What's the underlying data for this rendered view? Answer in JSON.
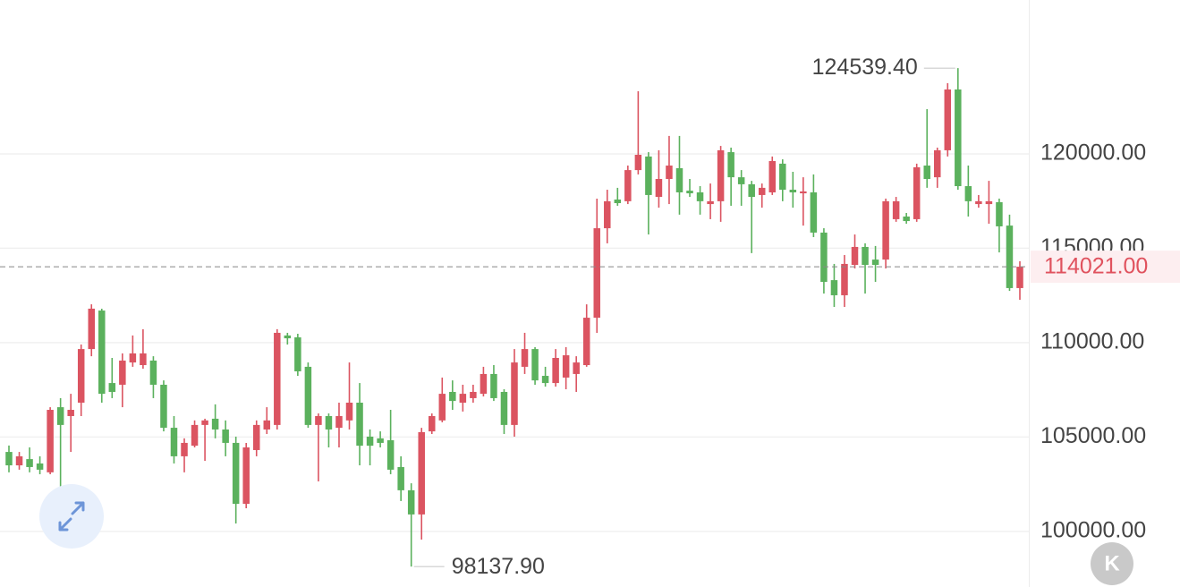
{
  "chart_data": {
    "type": "candlestick",
    "open": [
      104210,
      103500,
      103830,
      103600,
      103130,
      106580,
      106110,
      106820,
      109660,
      111700,
      107860,
      107770,
      108950,
      108810,
      109050,
      107770,
      105490,
      103980,
      104540,
      105640,
      105970,
      105400,
      104690,
      101460,
      104310,
      105400,
      105640,
      110380,
      110280,
      108720,
      105640,
      106110,
      105490,
      105880,
      106820,
      105020,
      104930,
      104830,
      103410,
      102180,
      100900,
      105300,
      105880,
      107390,
      106820,
      107060,
      107290,
      108340,
      107390,
      105640,
      108720,
      109660,
      108240,
      107860,
      108150,
      108340,
      108810,
      111320,
      116060,
      117580,
      117490,
      119140,
      119860,
      117720,
      118670,
      119240,
      118050,
      117960,
      117340,
      117490,
      120090,
      118760,
      118390,
      117820,
      117960,
      119480,
      118100,
      117910,
      117960,
      115830,
      113310,
      112510,
      114120,
      115070,
      114400,
      114400,
      116540,
      116680,
      116540,
      119380,
      118760,
      120190,
      123410,
      118290,
      117340,
      117340,
      117440,
      116200,
      112890
    ],
    "high": [
      104550,
      104210,
      104450,
      103980,
      106580,
      107060,
      107290,
      109900,
      112030,
      111800,
      109190,
      109430,
      110380,
      110710,
      109280,
      108000,
      106110,
      104930,
      105880,
      105970,
      106730,
      105880,
      105020,
      104690,
      105880,
      106580,
      110710,
      110520,
      110470,
      108950,
      106250,
      106250,
      106820,
      108950,
      107860,
      105400,
      105300,
      106440,
      103980,
      102550,
      105490,
      106250,
      108150,
      108000,
      107770,
      107770,
      108720,
      108810,
      107530,
      109660,
      110520,
      109760,
      108720,
      109660,
      109760,
      109280,
      112030,
      117630,
      118100,
      118200,
      119380,
      123320,
      120090,
      120190,
      120950,
      120950,
      118670,
      118290,
      118430,
      120420,
      120330,
      119140,
      118570,
      118430,
      119860,
      119710,
      119050,
      118760,
      118910,
      116060,
      114170,
      114640,
      115730,
      115260,
      115120,
      117630,
      117720,
      116870,
      119480,
      122370,
      120330,
      123740,
      124539.4,
      119380,
      117820,
      118570,
      117630,
      116780,
      114310
    ],
    "low": [
      103130,
      103270,
      103130,
      103030,
      103030,
      102180,
      104210,
      106110,
      109280,
      106820,
      107060,
      106580,
      108720,
      108620,
      107060,
      105300,
      103600,
      103130,
      104450,
      103740,
      104930,
      103980,
      100420,
      101230,
      103980,
      105160,
      105400,
      109900,
      108240,
      105490,
      102650,
      104450,
      104450,
      105400,
      103500,
      103500,
      104450,
      103030,
      101610,
      98137.9,
      99570,
      105160,
      105780,
      106440,
      106350,
      106820,
      107150,
      106910,
      105160,
      105020,
      108340,
      107770,
      107670,
      107670,
      107530,
      107390,
      108720,
      110520,
      115260,
      117250,
      117340,
      118910,
      115730,
      117150,
      117340,
      116780,
      117720,
      116780,
      116540,
      116400,
      117250,
      117250,
      114740,
      117150,
      117820,
      117490,
      117150,
      116200,
      115590,
      112600,
      111890,
      111890,
      113930,
      112600,
      113220,
      113930,
      116400,
      116300,
      116400,
      118200,
      118200,
      119860,
      118100,
      116680,
      117150,
      116300,
      114780,
      112740,
      112270
    ],
    "close": [
      103500,
      103980,
      103410,
      103270,
      106440,
      105640,
      106440,
      109660,
      111800,
      107290,
      107390,
      109050,
      109430,
      109430,
      107770,
      105490,
      103980,
      104690,
      105640,
      105880,
      105400,
      104690,
      101460,
      104450,
      105640,
      105880,
      110520,
      110230,
      108480,
      105640,
      106110,
      105400,
      106110,
      106820,
      104540,
      104540,
      104690,
      103270,
      102180,
      100900,
      105260,
      106110,
      107290,
      106910,
      107290,
      107390,
      108340,
      107060,
      105640,
      108950,
      109660,
      108000,
      107860,
      109190,
      109330,
      108950,
      111320,
      116060,
      117490,
      117390,
      119140,
      119950,
      117820,
      118670,
      119380,
      117960,
      117910,
      117490,
      117490,
      120190,
      118760,
      118390,
      117720,
      118200,
      119620,
      118100,
      117960,
      118010,
      115830,
      113220,
      112510,
      114170,
      115070,
      114120,
      114120,
      117490,
      117490,
      116440,
      119290,
      118670,
      120190,
      123410,
      118290,
      117490,
      117490,
      117490,
      116160,
      112890,
      114021
    ],
    "up_color": "#db5461",
    "down_color": "#5bb15d",
    "ylim": [
      97056,
      128150
    ],
    "yticks": [
      {
        "value": 100000,
        "label": "100000.00"
      },
      {
        "value": 105000,
        "label": "105000.00"
      },
      {
        "value": 110000,
        "label": "110000.00"
      },
      {
        "value": 115000,
        "label": "115000.00"
      },
      {
        "value": 120000,
        "label": "120000.00"
      }
    ],
    "grid": true,
    "last_price": {
      "value": 114021,
      "label": "114021.00"
    },
    "max_label": {
      "value": 124539.4,
      "label": "124539.40"
    },
    "min_label": {
      "value": 98137.9,
      "label": "98137.90"
    }
  },
  "badge": "K"
}
